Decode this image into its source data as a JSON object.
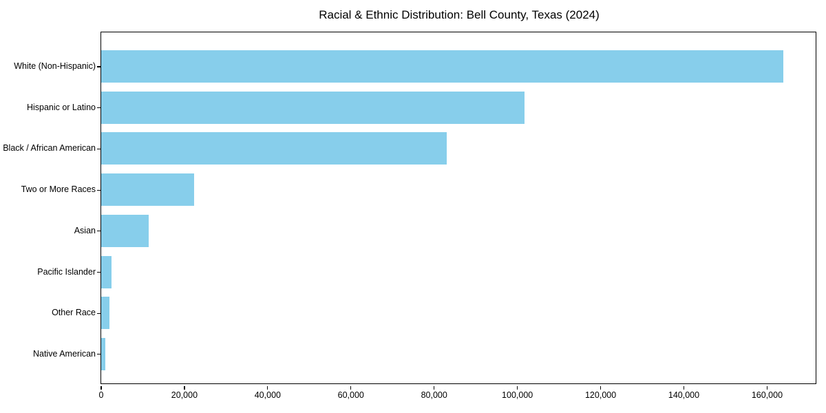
{
  "chart_data": {
    "type": "bar",
    "orientation": "horizontal",
    "title": "Racial & Ethnic Distribution: Bell County, Texas (2024)",
    "xlabel": "",
    "ylabel": "",
    "categories": [
      "White (Non-Hispanic)",
      "Hispanic or Latino",
      "Black / African American",
      "Two or More Races",
      "Asian",
      "Pacific Islander",
      "Other Race",
      "Native American"
    ],
    "values": [
      164000,
      101800,
      83100,
      22400,
      11500,
      2600,
      2100,
      1100
    ],
    "bar_color": "#87CEEB",
    "xlim": [
      0,
      172000
    ],
    "xticks": [
      0,
      20000,
      40000,
      60000,
      80000,
      100000,
      120000,
      140000,
      160000
    ],
    "xtick_labels": [
      "0",
      "20,000",
      "40,000",
      "60,000",
      "80,000",
      "100,000",
      "120,000",
      "140,000",
      "160,000"
    ],
    "grid": false,
    "legend": null
  }
}
